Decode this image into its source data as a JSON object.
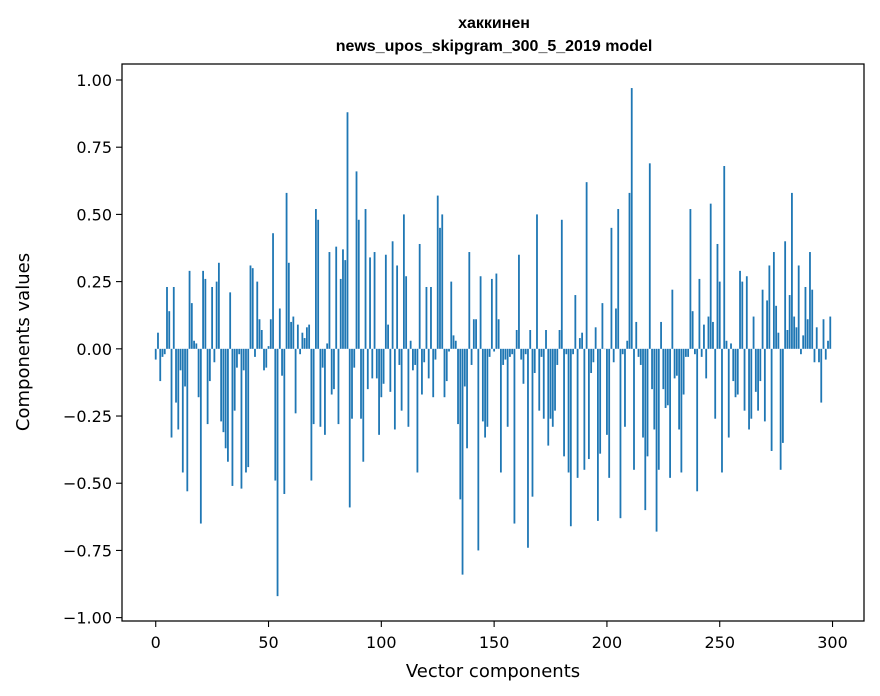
{
  "chart_data": {
    "type": "bar",
    "title": "хаккинен",
    "subtitle": "news_upos_skipgram_300_5_2019 model",
    "xlabel": "Vector components",
    "ylabel": "Components values",
    "xlim": [
      -14.95,
      313.95
    ],
    "ylim": [
      -1.0125,
      1.0595
    ],
    "xticks": [
      0,
      50,
      100,
      150,
      200,
      250,
      300
    ],
    "xtick_labels": [
      "0",
      "50",
      "100",
      "150",
      "200",
      "250",
      "300"
    ],
    "yticks": [
      1.0,
      0.75,
      0.5,
      0.25,
      0.0,
      -0.25,
      -0.5,
      -0.75,
      -1.0
    ],
    "ytick_labels": [
      "1.00",
      "0.75",
      "0.50",
      "0.25",
      "0.00",
      "−0.25",
      "−0.50",
      "−0.75",
      "−1.00"
    ],
    "grid": false,
    "bar_color": "#1f77b4",
    "values": [
      -0.04,
      0.06,
      -0.12,
      -0.03,
      -0.02,
      0.23,
      0.14,
      -0.33,
      0.23,
      -0.2,
      -0.3,
      -0.08,
      -0.46,
      -0.14,
      -0.53,
      0.29,
      0.17,
      0.03,
      0.02,
      -0.18,
      -0.65,
      0.29,
      0.26,
      -0.28,
      -0.12,
      0.23,
      -0.05,
      0.25,
      0.32,
      -0.27,
      -0.31,
      -0.37,
      -0.42,
      0.21,
      -0.51,
      -0.23,
      -0.07,
      -0.02,
      -0.52,
      -0.08,
      -0.46,
      -0.44,
      0.31,
      0.3,
      -0.03,
      0.25,
      0.11,
      0.07,
      -0.08,
      -0.07,
      0.01,
      0.11,
      0.43,
      -0.49,
      -0.92,
      0.15,
      -0.1,
      -0.54,
      0.58,
      0.32,
      0.1,
      0.12,
      -0.24,
      0.09,
      -0.02,
      0.06,
      0.04,
      0.08,
      0.09,
      -0.49,
      -0.28,
      0.52,
      0.48,
      -0.29,
      -0.07,
      -0.32,
      0.02,
      0.36,
      -0.17,
      -0.15,
      0.38,
      -0.28,
      0.26,
      0.37,
      0.33,
      0.88,
      -0.59,
      -0.26,
      -0.07,
      0.66,
      0.48,
      -0.26,
      -0.42,
      0.52,
      -0.15,
      0.34,
      -0.11,
      0.36,
      -0.11,
      -0.32,
      -0.18,
      -0.13,
      0.35,
      0.09,
      -0.16,
      0.4,
      -0.3,
      0.31,
      -0.06,
      -0.23,
      0.5,
      0.27,
      -0.29,
      0.03,
      -0.08,
      -0.06,
      -0.46,
      0.39,
      -0.17,
      -0.05,
      0.23,
      -0.11,
      0.23,
      -0.18,
      -0.04,
      0.57,
      0.45,
      0.5,
      -0.18,
      -0.12,
      -0.01,
      0.25,
      0.05,
      0.03,
      -0.28,
      -0.56,
      -0.84,
      -0.14,
      -0.37,
      0.36,
      -0.06,
      0.11,
      0.11,
      -0.75,
      0.27,
      -0.27,
      -0.33,
      -0.29,
      -0.03,
      0.26,
      -0.01,
      0.28,
      0.11,
      -0.46,
      -0.06,
      -0.04,
      -0.29,
      -0.03,
      -0.02,
      -0.65,
      0.07,
      0.35,
      -0.04,
      -0.13,
      -0.02,
      -0.74,
      0.07,
      -0.55,
      -0.09,
      0.5,
      -0.23,
      -0.03,
      -0.26,
      0.07,
      -0.36,
      -0.26,
      -0.29,
      -0.23,
      -0.06,
      0.07,
      0.48,
      -0.4,
      -0.02,
      -0.46,
      -0.66,
      -0.02,
      0.2,
      -0.48,
      0.04,
      0.06,
      -0.45,
      0.62,
      -0.41,
      -0.09,
      -0.05,
      0.08,
      -0.64,
      -0.39,
      0.17,
      0.0,
      -0.32,
      -0.48,
      0.45,
      -0.05,
      0.15,
      0.52,
      -0.63,
      -0.02,
      -0.29,
      0.03,
      0.58,
      0.97,
      -0.45,
      0.1,
      -0.03,
      -0.06,
      -0.33,
      -0.6,
      -0.4,
      0.69,
      -0.15,
      -0.3,
      -0.68,
      -0.45,
      0.1,
      -0.15,
      -0.22,
      -0.21,
      -0.48,
      0.22,
      -0.11,
      -0.1,
      -0.3,
      -0.46,
      -0.17,
      -0.03,
      -0.03,
      0.52,
      0.14,
      -0.02,
      -0.53,
      0.26,
      -0.03,
      0.09,
      -0.11,
      0.12,
      0.54,
      0.1,
      -0.26,
      0.39,
      0.25,
      -0.46,
      0.68,
      0.03,
      -0.33,
      0.02,
      -0.12,
      -0.18,
      -0.17,
      0.29,
      0.25,
      -0.23,
      0.27,
      -0.3,
      -0.26,
      0.12,
      -0.16,
      -0.23,
      -0.12,
      0.22,
      -0.27,
      0.18,
      0.31,
      -0.38,
      0.36,
      0.16,
      0.06,
      -0.45,
      -0.35,
      0.4,
      0.07,
      0.2,
      0.58,
      0.12,
      0.08,
      0.31,
      -0.02,
      0.05,
      0.23,
      0.11,
      0.36,
      0.22,
      -0.05,
      0.08,
      -0.05,
      -0.2,
      0.11,
      -0.04,
      0.03,
      0.12
    ]
  }
}
